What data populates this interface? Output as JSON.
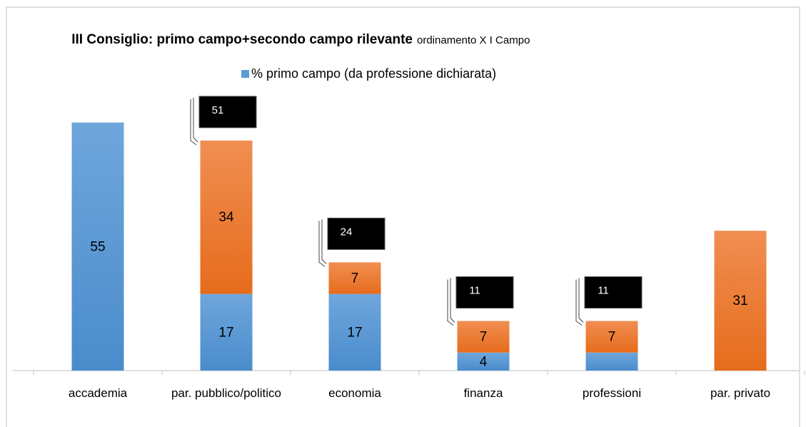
{
  "chart_data": {
    "type": "stacked-bar",
    "title": "III Consiglio: primo campo+secondo campo rilevante",
    "subtitle": "ordinamento X I Campo",
    "categories": [
      "accademia",
      "par. pubblico/politico",
      "economia",
      "finanza",
      "professioni",
      "par. privato"
    ],
    "series": [
      {
        "name": "% primo campo (da professione dichiarata)",
        "color": "#5b9bd5",
        "values": [
          55,
          17,
          17,
          4,
          4,
          null
        ],
        "value_labels": [
          55,
          17,
          17,
          4,
          null,
          null
        ]
      },
      {
        "color": "#ed7d31",
        "values": [
          null,
          34,
          7,
          7,
          7,
          31
        ]
      }
    ],
    "totals": [
      null,
      51,
      24,
      11,
      11,
      null
    ],
    "ylim": [
      0,
      60
    ],
    "legend": "top"
  }
}
